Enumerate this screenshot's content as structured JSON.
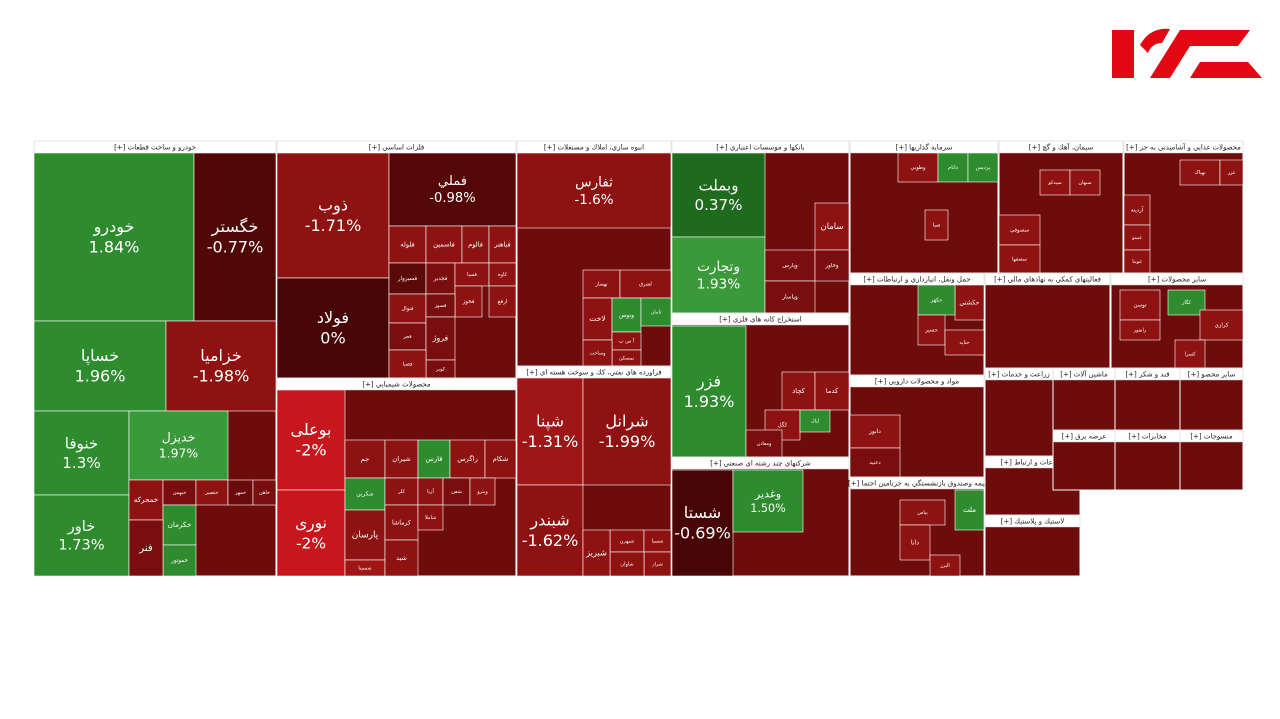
{
  "chart_data": {
    "type": "treemap",
    "groups": [
      {
        "name": "خودرو و ساخت قطعات [+]",
        "tiles": [
          {
            "label": "خودرو",
            "value": 1.84,
            "value_label": "1.84%",
            "color": "#2e8b2e"
          },
          {
            "label": "خگستر",
            "value": -0.77,
            "value_label": "-0.77%",
            "color": "#520707"
          },
          {
            "label": "خساپا",
            "value": 1.96,
            "value_label": "1.96%",
            "color": "#2e8b2e"
          },
          {
            "label": "خزامیا",
            "value": -1.98,
            "value_label": "-1.98%",
            "color": "#8e1212"
          },
          {
            "label": "خنوفا",
            "value": 1.3,
            "value_label": "1.3%",
            "color": "#2e8b2e"
          },
          {
            "label": "خدیزل",
            "value": 1.97,
            "value_label": "1.97%",
            "color": "#3a9a3a"
          },
          {
            "label": "خاور",
            "value": 1.73,
            "value_label": "1.73%",
            "color": "#2e8b2e"
          },
          {
            "label": "خمحرکه",
            "color": "#8e1212"
          },
          {
            "label": "خبهمن",
            "color": "#7a0e0e"
          },
          {
            "label": "ختصیر",
            "color": "#8e1212"
          },
          {
            "label": "خمهر",
            "color": "#6a0a0a"
          },
          {
            "label": "خاهن",
            "color": "#7a0e0e"
          },
          {
            "label": "خکرمان",
            "color": "#2e8b2e"
          },
          {
            "label": "خموتور",
            "color": "#2e8b2e"
          },
          {
            "label": "فنر",
            "color": "#7a0e0e"
          }
        ]
      },
      {
        "name": "فلزات اساسي [+]",
        "tiles": [
          {
            "label": "ذوب",
            "value": -1.71,
            "value_label": "-1.71%",
            "color": "#8e1212"
          },
          {
            "label": "فولاد",
            "value": 0,
            "value_label": "0%",
            "color": "#480505"
          },
          {
            "label": "فملي",
            "value": -0.98,
            "value_label": "-0.98%",
            "color": "#550707"
          },
          {
            "label": "فلوله",
            "color": "#8e1212"
          },
          {
            "label": "فاسمين",
            "color": "#8e1212"
          },
          {
            "label": "فالوم",
            "color": "#8e1212"
          },
          {
            "label": "فباهنر",
            "color": "#8e1212"
          },
          {
            "label": "فسبزوار",
            "color": "#5a0808"
          },
          {
            "label": "فجدير",
            "color": "#7a0e0e"
          },
          {
            "label": "فسپا",
            "color": "#8e1212"
          },
          {
            "label": "کاوه",
            "color": "#8e1212"
          },
          {
            "label": "فخوز",
            "color": "#8e1212"
          },
          {
            "label": "ارفع",
            "color": "#8e1212"
          },
          {
            "label": "فنوال",
            "color": "#8e1212"
          },
          {
            "label": "فسوز",
            "color": "#7a0e0e"
          },
          {
            "label": "فجر",
            "color": "#7a0e0e"
          },
          {
            "label": "فروژ",
            "color": "#7a0e0e"
          },
          {
            "label": "کویر",
            "color": "#7a0e0e"
          },
          {
            "label": "فصبا",
            "color": "#8e1212"
          }
        ]
      },
      {
        "name": "محصولات شيميايي [+]",
        "tiles": [
          {
            "label": "بوعلی",
            "value": -2,
            "value_label": "-2%",
            "color": "#c8161d"
          },
          {
            "label": "نوری",
            "value": -2,
            "value_label": "-2%",
            "color": "#c8161d"
          },
          {
            "label": "جم",
            "color": "#8e1212"
          },
          {
            "label": "شيران",
            "color": "#8e1212"
          },
          {
            "label": "فارس",
            "color": "#2e8b2e"
          },
          {
            "label": "زاگرس",
            "color": "#8e1212"
          },
          {
            "label": "شکام",
            "color": "#8e1212"
          },
          {
            "label": "شکربن",
            "color": "#2e8b2e"
          },
          {
            "label": "پارسان",
            "color": "#8e1212"
          },
          {
            "label": "شسينا",
            "color": "#a01515"
          },
          {
            "label": "کلر",
            "color": "#8e1212"
          },
          {
            "label": "کرماشا",
            "color": "#8e1212"
          },
          {
            "label": "آریا",
            "color": "#8e1212"
          },
          {
            "label": "شفن",
            "color": "#7a0e0e"
          },
          {
            "label": "وپترو",
            "color": "#8e1212"
          },
          {
            "label": "شاملا",
            "color": "#8e1212"
          },
          {
            "label": "شيد",
            "color": "#8e1212"
          }
        ]
      },
      {
        "name": "انبوه سازي، املاك و مستغلات [+]",
        "tiles": [
          {
            "label": "ثفارس",
            "value": -1.6,
            "value_label": "-1.6%",
            "color": "#8e1212"
          },
          {
            "label": "تهساز",
            "color": "#8e1212"
          },
          {
            "label": "لشرق",
            "color": "#8e1212"
          },
          {
            "label": "لاخت",
            "color": "#8e1212"
          },
          {
            "label": "ونوس",
            "color": "#2e8b2e"
          },
          {
            "label": "ثامان",
            "color": "#2e8b2e"
          },
          {
            "label": "آ س پ",
            "color": "#8e1212"
          },
          {
            "label": "تمسكن",
            "color": "#8e1212"
          },
          {
            "label": "وساخت",
            "color": "#8e1212"
          }
        ]
      },
      {
        "name": "فراورده هاي نفتي، كك و سوخت هسته اي [+]",
        "tiles": [
          {
            "label": "شپنا",
            "value": -1.31,
            "value_label": "-1.31%",
            "color": "#a01515"
          },
          {
            "label": "شرانل",
            "value": -1.99,
            "value_label": "-1.99%",
            "color": "#8e1212"
          },
          {
            "label": "شبندر",
            "value": -1.62,
            "value_label": "-1.62%",
            "color": "#8e1212"
          },
          {
            "label": "شبهرن",
            "color": "#8e1212"
          },
          {
            "label": "شسپا",
            "color": "#8e1212"
          },
          {
            "label": "شراز",
            "color": "#8e1212"
          },
          {
            "label": "شاوان",
            "color": "#8e1212"
          },
          {
            "label": "شبريز",
            "color": "#8e1212"
          }
        ]
      },
      {
        "name": "بانكها و موسسات اعتباري [+]",
        "tiles": [
          {
            "label": "وبملت",
            "value": 0.37,
            "value_label": "0.37%",
            "color": "#1e6b1e"
          },
          {
            "label": "وتجارت",
            "value": 1.93,
            "value_label": "1.93%",
            "color": "#3a9a3a"
          },
          {
            "label": "سامان",
            "color": "#8e1212"
          },
          {
            "label": "وپارس",
            "color": "#7a0e0e"
          },
          {
            "label": "وپاسار",
            "color": "#7a0e0e"
          },
          {
            "label": "وخاور",
            "color": "#7a0e0e"
          }
        ]
      },
      {
        "name": "استخراج كانه هاي فلزي [+]",
        "tiles": [
          {
            "label": "فزر",
            "value": 1.93,
            "value_label": "1.93%",
            "color": "#2e8b2e"
          },
          {
            "label": "کچاد",
            "color": "#8e1212"
          },
          {
            "label": "کگل",
            "color": "#8e1212"
          },
          {
            "label": "کدما",
            "color": "#8e1212"
          },
          {
            "label": "ومعادن",
            "color": "#7a0e0e"
          },
          {
            "label": "اپال",
            "color": "#2e8b2e"
          }
        ]
      },
      {
        "name": "شركتهاي چند رشته اي صنعتي [+]",
        "tiles": [
          {
            "label": "شستا",
            "value": -0.69,
            "value_label": "-0.69%",
            "color": "#480505"
          },
          {
            "label": "وغدير",
            "value": 1.5,
            "value_label": "1.50%",
            "color": "#2e8b2e"
          }
        ]
      },
      {
        "name": "سرمايه گذاريها [+]",
        "tiles": [
          {
            "label": "وطوبي",
            "color": "#8e1212"
          },
          {
            "label": "دانام",
            "color": "#2e8b2e"
          },
          {
            "label": "پردیس",
            "color": "#2e8b2e"
          },
          {
            "label": "صبا",
            "color": "#8e1212"
          }
        ]
      },
      {
        "name": "حمل ونقل، انبارداري و ارتباطات [+]",
        "tiles": [
          {
            "label": "حكشتي",
            "color": "#8e1212"
          },
          {
            "label": "حکهر",
            "color": "#2e8b2e"
          },
          {
            "label": "حسير",
            "color": "#8e1212"
          },
          {
            "label": "حتاید",
            "color": "#8e1212"
          }
        ]
      },
      {
        "name": "مواد و محصولات دارويي [+]",
        "tiles": [
          {
            "label": "دابور",
            "color": "#8e1212"
          },
          {
            "label": "دعبيد",
            "color": "#7a0e0e"
          }
        ]
      },
      {
        "name": "بيمه وصندوق بازنشستگي به جزتامين اجتما [+]",
        "tiles": [
          {
            "label": "بپاس",
            "color": "#8e1212"
          },
          {
            "label": "ملت",
            "color": "#2e8b2e"
          },
          {
            "label": "دانا",
            "color": "#8e1212"
          },
          {
            "label": "البرز",
            "color": "#8e1212"
          }
        ]
      },
      {
        "name": "سيمان، آهك و گچ [+]",
        "tiles": [
          {
            "label": "سيدكو",
            "color": "#8e1212"
          },
          {
            "label": "سبهان",
            "color": "#8e1212"
          },
          {
            "label": "سصوفي",
            "color": "#8e1212"
          },
          {
            "label": "سصفها",
            "color": "#8e1212"
          }
        ]
      },
      {
        "name": "محصولات غذايي و آشاميدني به جز [+]",
        "tiles": [
          {
            "label": "بهپاک",
            "color": "#8e1212"
          },
          {
            "label": "غزر",
            "color": "#8e1212"
          },
          {
            "label": "آردينه",
            "color": "#8e1212"
          },
          {
            "label": "غبينو",
            "color": "#8e1212"
          },
          {
            "label": "غويتا",
            "color": "#8e1212"
          }
        ]
      },
      {
        "name": "فعاليتهاي كمكي به نهادهاي مالي [+]",
        "tiles": []
      },
      {
        "name": "سایر محصولات [+]",
        "tiles": [
          {
            "label": "توسن",
            "color": "#8e1212"
          },
          {
            "label": "کگاز",
            "color": "#2e8b2e"
          },
          {
            "label": "رانفور",
            "color": "#8e1212"
          },
          {
            "label": "کرازي",
            "color": "#8e1212"
          },
          {
            "label": "كسرا",
            "color": "#8e1212"
          }
        ]
      },
      {
        "name": "زراعت و خدمات [+]",
        "tiles": []
      },
      {
        "name": "ماشين آلات [+]",
        "tiles": []
      },
      {
        "name": "قند و شكر [+]",
        "tiles": []
      },
      {
        "name": "سایر محصو [+]",
        "tiles": []
      },
      {
        "name": "اطلاعات و ارتباط [+]",
        "tiles": []
      },
      {
        "name": "عرضه برق [+]",
        "tiles": []
      },
      {
        "name": "لاستيك و پلاستيك [+]",
        "tiles": []
      },
      {
        "name": "مخابرات [+]",
        "tiles": []
      },
      {
        "name": "منسوجات [+]",
        "tiles": []
      }
    ]
  }
}
